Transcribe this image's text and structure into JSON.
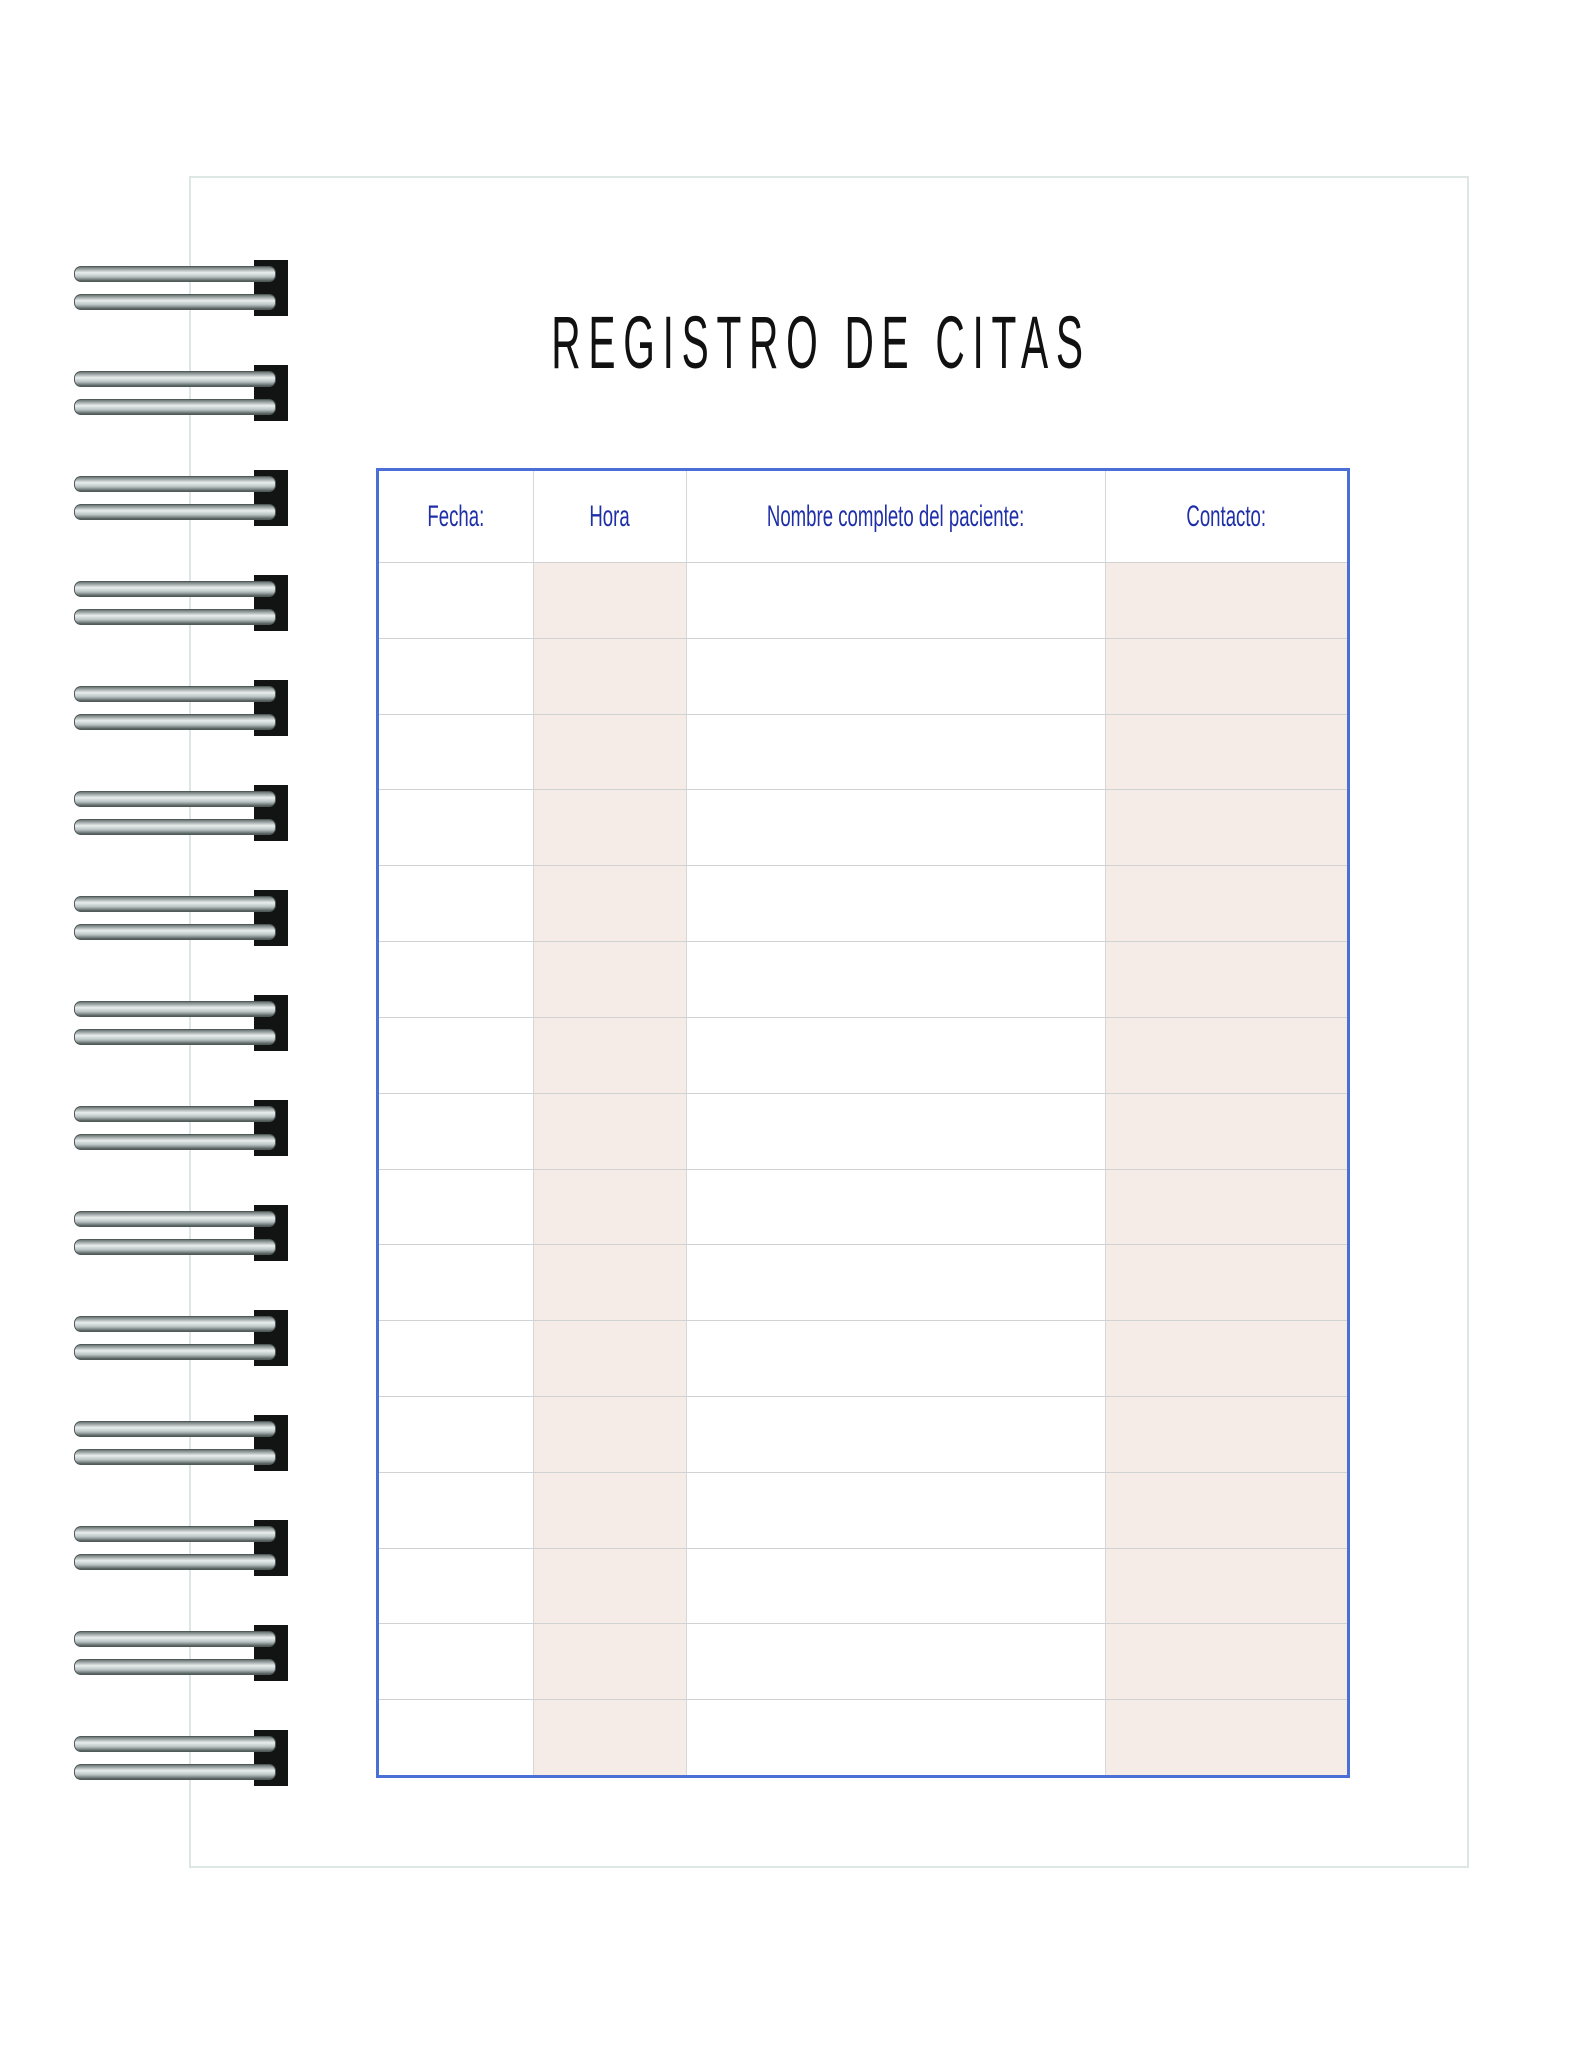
{
  "title": "REGISTRO DE CITAS",
  "table": {
    "headers": [
      "Fecha:",
      "Hora",
      "Nombre completo del paciente:",
      "Contacto:"
    ],
    "row_count": 16
  },
  "binding": {
    "ring_count": 15
  },
  "colors": {
    "border": "#4a6fd6",
    "header_text": "#1e2fa8",
    "shaded_column": "#f5ebe7"
  }
}
